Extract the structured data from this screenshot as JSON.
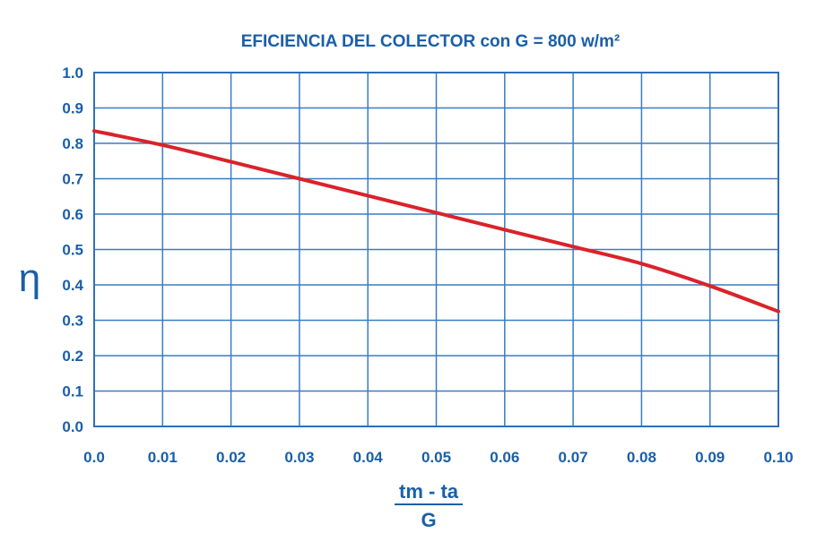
{
  "colors": {
    "text": "#1a5fa8",
    "grid": "#3a7cc4",
    "frame": "#2f6fb8",
    "line": "#d9232a",
    "background": "#ffffff"
  },
  "chart_data": {
    "type": "line",
    "title": "EFICIENCIA DEL COLECTOR con G = 800 w/m²",
    "ylabel": "η",
    "xlabel_numerator": "tm - ta",
    "xlabel_denominator": "G",
    "xlim": [
      0.0,
      0.1
    ],
    "ylim": [
      0.0,
      1.0
    ],
    "grid": true,
    "x_ticks": [
      "0.0",
      "0.01",
      "0.02",
      "0.03",
      "0.04",
      "0.05",
      "0.06",
      "0.07",
      "0.08",
      "0.09",
      "0.10"
    ],
    "y_ticks": [
      "0.0",
      "0.1",
      "0.2",
      "0.3",
      "0.4",
      "0.5",
      "0.6",
      "0.7",
      "0.8",
      "0.9",
      "1.0"
    ],
    "series": [
      {
        "x": [
          0.0,
          0.01,
          0.02,
          0.03,
          0.04,
          0.05,
          0.06,
          0.07,
          0.08,
          0.09,
          0.1
        ],
        "y": [
          0.835,
          0.795,
          0.748,
          0.7,
          0.652,
          0.604,
          0.556,
          0.508,
          0.46,
          0.397,
          0.325
        ]
      }
    ]
  }
}
